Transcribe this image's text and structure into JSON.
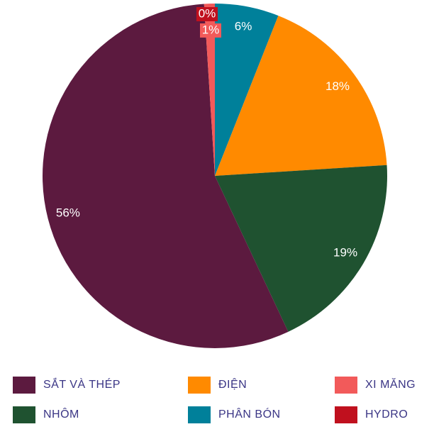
{
  "chart_data": {
    "type": "pie",
    "categories": [
      "PHÂN BÓN",
      "ĐIỆN",
      "NHÔM",
      "SẮT VÀ THÉP",
      "XI MĂNG",
      "HYDRO"
    ],
    "values": [
      6,
      18,
      19,
      56,
      1,
      0
    ],
    "value_labels": [
      "6%",
      "18%",
      "19%",
      "56%",
      "1%",
      "0%"
    ],
    "colors": [
      "#00809a",
      "#ff8a00",
      "#1f5230",
      "#5c1a3f",
      "#f25a5a",
      "#c0101e"
    ],
    "legend": "bottom"
  }
}
